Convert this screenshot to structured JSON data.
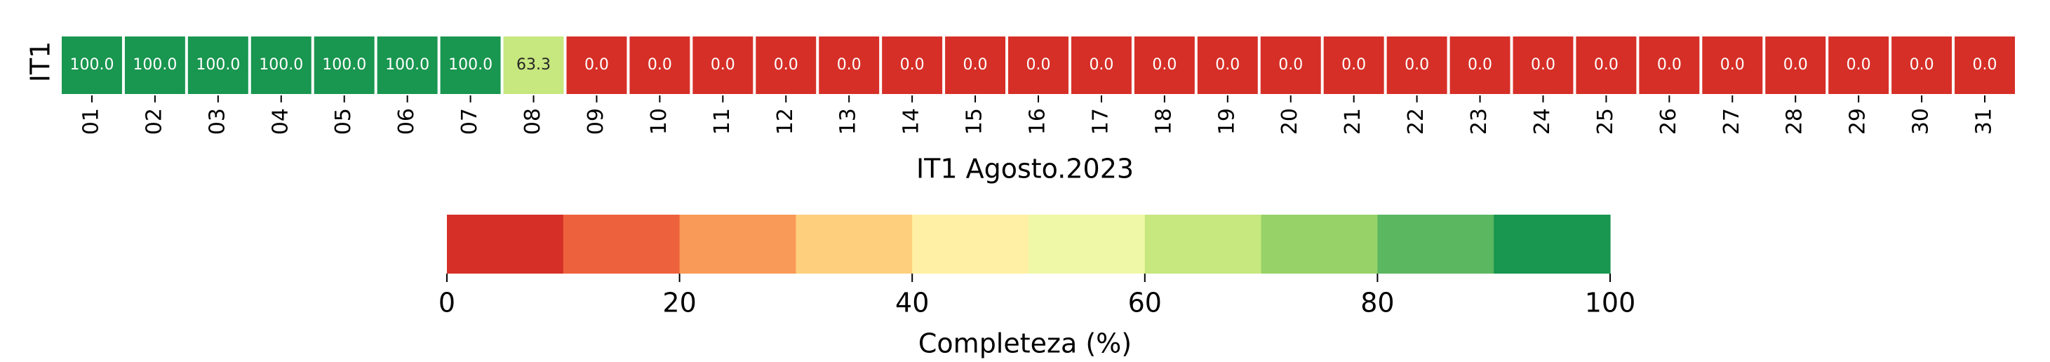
{
  "chart_data": {
    "type": "heatmap",
    "row_label": "IT1",
    "xlabel": "IT1 Agosto.2023",
    "categories": [
      "01",
      "02",
      "03",
      "04",
      "05",
      "06",
      "07",
      "08",
      "09",
      "10",
      "11",
      "12",
      "13",
      "14",
      "15",
      "16",
      "17",
      "18",
      "19",
      "20",
      "21",
      "22",
      "23",
      "24",
      "25",
      "26",
      "27",
      "28",
      "29",
      "30",
      "31"
    ],
    "values": [
      100.0,
      100.0,
      100.0,
      100.0,
      100.0,
      100.0,
      100.0,
      63.3,
      0.0,
      0.0,
      0.0,
      0.0,
      0.0,
      0.0,
      0.0,
      0.0,
      0.0,
      0.0,
      0.0,
      0.0,
      0.0,
      0.0,
      0.0,
      0.0,
      0.0,
      0.0,
      0.0,
      0.0,
      0.0,
      0.0,
      0.0
    ],
    "value_range": [
      0,
      100
    ],
    "colormap": [
      "#d62f27",
      "#ee613d",
      "#fa9a58",
      "#fecf7d",
      "#fff0a5",
      "#eff8a6",
      "#c7e77f",
      "#96d268",
      "#5bb760",
      "#19964f"
    ],
    "colorbar": {
      "label": "Completeza (%)",
      "ticks": [
        0,
        20,
        40,
        60,
        80,
        100
      ]
    }
  }
}
